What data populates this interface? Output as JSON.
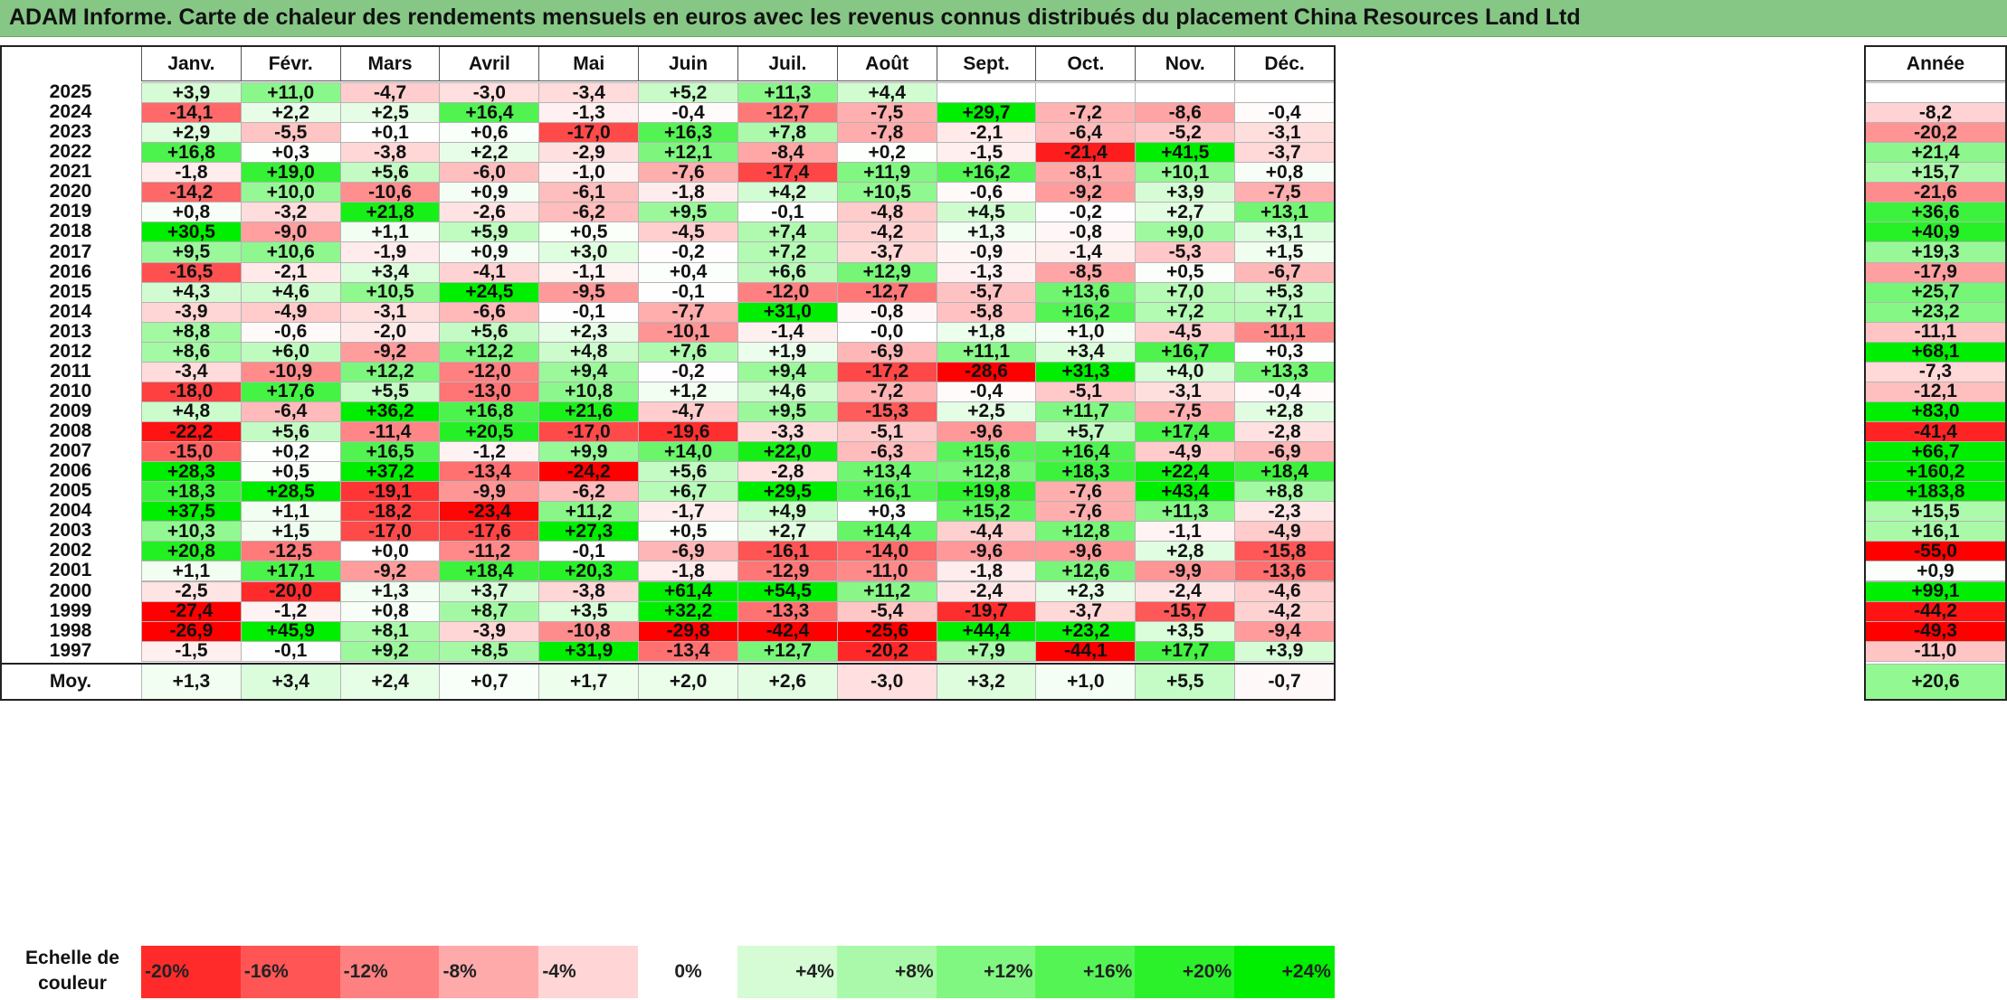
{
  "title": "ADAM Informe. Carte de chaleur des rendements mensuels en euros avec les revenus connus distribués du placement China Resources Land Ltd",
  "colors": {
    "title_bg": "#86c785",
    "negative_strong": "#ff0000",
    "positive_strong": "#00ee00",
    "neutral": "#ffffff"
  },
  "avg_label": "Moy.",
  "scale_label": "Echelle de couleur",
  "chart_data": {
    "type": "heatmap",
    "title": "ADAM Informe. Carte de chaleur des rendements mensuels en euros avec les revenus connus distribués du placement China Resources Land Ltd",
    "months": [
      "Janv.",
      "Févr.",
      "Mars",
      "Avril",
      "Mai",
      "Juin",
      "Juil.",
      "Août",
      "Sept.",
      "Oct.",
      "Nov.",
      "Déc."
    ],
    "year_column_label": "Année",
    "rows": [
      {
        "year": "2025",
        "values": [
          "+3,9",
          "+11,0",
          "-4,7",
          "-3,0",
          "-3,4",
          "+5,2",
          "+11,3",
          "+4,4",
          "",
          "",
          "",
          ""
        ],
        "annual": ""
      },
      {
        "year": "2024",
        "values": [
          "-14,1",
          "+2,2",
          "+2,5",
          "+16,4",
          "-1,3",
          "-0,4",
          "-12,7",
          "-7,5",
          "+29,7",
          "-7,2",
          "-8,6",
          "-0,4"
        ],
        "annual": "-8,2"
      },
      {
        "year": "2023",
        "values": [
          "+2,9",
          "-5,5",
          "+0,1",
          "+0,6",
          "-17,0",
          "+16,3",
          "+7,8",
          "-7,8",
          "-2,1",
          "-6,4",
          "-5,2",
          "-3,1"
        ],
        "annual": "-20,2"
      },
      {
        "year": "2022",
        "values": [
          "+16,8",
          "+0,3",
          "-3,8",
          "+2,2",
          "-2,9",
          "+12,1",
          "-8,4",
          "+0,2",
          "-1,5",
          "-21,4",
          "+41,5",
          "-3,7"
        ],
        "annual": "+21,4"
      },
      {
        "year": "2021",
        "values": [
          "-1,8",
          "+19,0",
          "+5,6",
          "-6,0",
          "-1,0",
          "-7,6",
          "-17,4",
          "+11,9",
          "+16,2",
          "-8,1",
          "+10,1",
          "+0,8"
        ],
        "annual": "+15,7"
      },
      {
        "year": "2020",
        "values": [
          "-14,2",
          "+10,0",
          "-10,6",
          "+0,9",
          "-6,1",
          "-1,8",
          "+4,2",
          "+10,5",
          "-0,6",
          "-9,2",
          "+3,9",
          "-7,5"
        ],
        "annual": "-21,6"
      },
      {
        "year": "2019",
        "values": [
          "+0,8",
          "-3,2",
          "+21,8",
          "-2,6",
          "-6,2",
          "+9,5",
          "-0,1",
          "-4,8",
          "+4,5",
          "-0,2",
          "+2,7",
          "+13,1"
        ],
        "annual": "+36,6"
      },
      {
        "year": "2018",
        "values": [
          "+30,5",
          "-9,0",
          "+1,1",
          "+5,9",
          "+0,5",
          "-4,5",
          "+7,4",
          "-4,2",
          "+1,3",
          "-0,8",
          "+9,0",
          "+3,1"
        ],
        "annual": "+40,9"
      },
      {
        "year": "2017",
        "values": [
          "+9,5",
          "+10,6",
          "-1,9",
          "+0,9",
          "+3,0",
          "-0,2",
          "+7,2",
          "-3,7",
          "-0,9",
          "-1,4",
          "-5,3",
          "+1,5"
        ],
        "annual": "+19,3"
      },
      {
        "year": "2016",
        "values": [
          "-16,5",
          "-2,1",
          "+3,4",
          "-4,1",
          "-1,1",
          "+0,4",
          "+6,6",
          "+12,9",
          "-1,3",
          "-8,5",
          "+0,5",
          "-6,7"
        ],
        "annual": "-17,9"
      },
      {
        "year": "2015",
        "values": [
          "+4,3",
          "+4,6",
          "+10,5",
          "+24,5",
          "-9,5",
          "-0,1",
          "-12,0",
          "-12,7",
          "-5,7",
          "+13,6",
          "+7,0",
          "+5,3"
        ],
        "annual": "+25,7"
      },
      {
        "year": "2014",
        "values": [
          "-3,9",
          "-4,9",
          "-3,1",
          "-6,6",
          "-0,1",
          "-7,7",
          "+31,0",
          "-0,8",
          "-5,8",
          "+16,2",
          "+7,2",
          "+7,1"
        ],
        "annual": "+23,2"
      },
      {
        "year": "2013",
        "values": [
          "+8,8",
          "-0,6",
          "-2,0",
          "+5,6",
          "+2,3",
          "-10,1",
          "-1,4",
          "-0,0",
          "+1,8",
          "+1,0",
          "-4,5",
          "-11,1"
        ],
        "annual": "-11,1"
      },
      {
        "year": "2012",
        "values": [
          "+8,6",
          "+6,0",
          "-9,2",
          "+12,2",
          "+4,8",
          "+7,6",
          "+1,9",
          "-6,9",
          "+11,1",
          "+3,4",
          "+16,7",
          "+0,3"
        ],
        "annual": "+68,1"
      },
      {
        "year": "2011",
        "values": [
          "-3,4",
          "-10,9",
          "+12,2",
          "-12,0",
          "+9,4",
          "-0,2",
          "+9,4",
          "-17,2",
          "-28,6",
          "+31,3",
          "+4,0",
          "+13,3"
        ],
        "annual": "-7,3"
      },
      {
        "year": "2010",
        "values": [
          "-18,0",
          "+17,6",
          "+5,5",
          "-13,0",
          "+10,8",
          "+1,2",
          "+4,6",
          "-7,2",
          "-0,4",
          "-5,1",
          "-3,1",
          "-0,4"
        ],
        "annual": "-12,1"
      },
      {
        "year": "2009",
        "values": [
          "+4,8",
          "-6,4",
          "+36,2",
          "+16,8",
          "+21,6",
          "-4,7",
          "+9,5",
          "-15,3",
          "+2,5",
          "+11,7",
          "-7,5",
          "+2,8"
        ],
        "annual": "+83,0"
      },
      {
        "year": "2008",
        "values": [
          "-22,2",
          "+5,6",
          "-11,4",
          "+20,5",
          "-17,0",
          "-19,6",
          "-3,3",
          "-5,1",
          "-9,6",
          "+5,7",
          "+17,4",
          "-2,8"
        ],
        "annual": "-41,4"
      },
      {
        "year": "2007",
        "values": [
          "-15,0",
          "+0,2",
          "+16,5",
          "-1,2",
          "+9,9",
          "+14,0",
          "+22,0",
          "-6,3",
          "+15,6",
          "+16,4",
          "-4,9",
          "-6,9"
        ],
        "annual": "+66,7"
      },
      {
        "year": "2006",
        "values": [
          "+28,3",
          "+0,5",
          "+37,2",
          "-13,4",
          "-24,2",
          "+5,6",
          "-2,8",
          "+13,4",
          "+12,8",
          "+18,3",
          "+22,4",
          "+18,4"
        ],
        "annual": "+160,2"
      },
      {
        "year": "2005",
        "values": [
          "+18,3",
          "+28,5",
          "-19,1",
          "-9,9",
          "-6,2",
          "+6,7",
          "+29,5",
          "+16,1",
          "+19,8",
          "-7,6",
          "+43,4",
          "+8,8"
        ],
        "annual": "+183,8"
      },
      {
        "year": "2004",
        "values": [
          "+37,5",
          "+1,1",
          "-18,2",
          "-23,4",
          "+11,2",
          "-1,7",
          "+4,9",
          "+0,3",
          "+15,2",
          "-7,6",
          "+11,3",
          "-2,3"
        ],
        "annual": "+15,5"
      },
      {
        "year": "2003",
        "values": [
          "+10,3",
          "+1,5",
          "-17,0",
          "-17,6",
          "+27,3",
          "+0,5",
          "+2,7",
          "+14,4",
          "-4,4",
          "+12,8",
          "-1,1",
          "-4,9"
        ],
        "annual": "+16,1"
      },
      {
        "year": "2002",
        "values": [
          "+20,8",
          "-12,5",
          "+0,0",
          "-11,2",
          "-0,1",
          "-6,9",
          "-16,1",
          "-14,0",
          "-9,6",
          "-9,6",
          "+2,8",
          "-15,8"
        ],
        "annual": "-55,0"
      },
      {
        "year": "2001",
        "values": [
          "+1,1",
          "+17,1",
          "-9,2",
          "+18,4",
          "+20,3",
          "-1,8",
          "-12,9",
          "-11,0",
          "-1,8",
          "+12,6",
          "-9,9",
          "-13,6"
        ],
        "annual": "+0,9"
      },
      {
        "year": "2000",
        "values": [
          "-2,5",
          "-20,0",
          "+1,3",
          "+3,7",
          "-3,8",
          "+61,4",
          "+54,5",
          "+11,2",
          "-2,4",
          "+2,3",
          "-2,4",
          "-4,6"
        ],
        "annual": "+99,1"
      },
      {
        "year": "1999",
        "values": [
          "-27,4",
          "-1,2",
          "+0,8",
          "+8,7",
          "+3,5",
          "+32,2",
          "-13,3",
          "-5,4",
          "-19,7",
          "-3,7",
          "-15,7",
          "-4,2"
        ],
        "annual": "-44,2"
      },
      {
        "year": "1998",
        "values": [
          "-26,9",
          "+45,9",
          "+8,1",
          "-3,9",
          "-10,8",
          "-29,8",
          "-42,4",
          "-25,6",
          "+44,4",
          "+23,2",
          "+3,5",
          "-9,4"
        ],
        "annual": "-49,3"
      },
      {
        "year": "1997",
        "values": [
          "-1,5",
          "-0,1",
          "+9,2",
          "+8,5",
          "+31,9",
          "-13,4",
          "+12,7",
          "-20,2",
          "+7,9",
          "-44,1",
          "+17,7",
          "+3,9"
        ],
        "annual": "-11,0"
      }
    ],
    "averages": [
      "+1,3",
      "+3,4",
      "+2,4",
      "+0,7",
      "+1,7",
      "+2,0",
      "+2,6",
      "-3,0",
      "+3,2",
      "+1,0",
      "+5,5",
      "-0,7"
    ],
    "average_annual": "+20,6",
    "scale": [
      {
        "label": "-20%",
        "value": -20
      },
      {
        "label": "-16%",
        "value": -16
      },
      {
        "label": "-12%",
        "value": -12
      },
      {
        "label": "-8%",
        "value": -8
      },
      {
        "label": "-4%",
        "value": -4
      },
      {
        "label": "0%",
        "value": 0
      },
      {
        "label": "+4%",
        "value": 4
      },
      {
        "label": "+8%",
        "value": 8
      },
      {
        "label": "+12%",
        "value": 12
      },
      {
        "label": "+16%",
        "value": 16
      },
      {
        "label": "+20%",
        "value": 20
      },
      {
        "label": "+24%",
        "value": 24
      }
    ]
  }
}
